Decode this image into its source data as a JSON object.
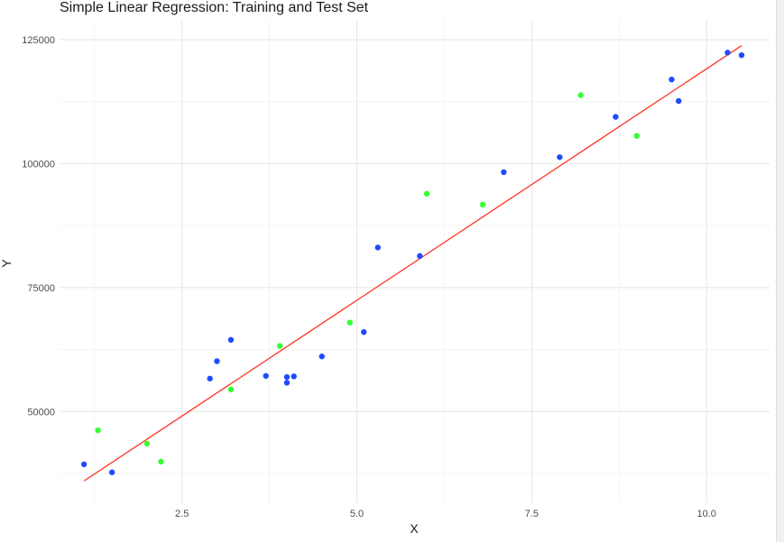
{
  "chart_data": {
    "type": "scatter",
    "title": "Simple Linear Regression: Training and Test Set",
    "xlabel": "X",
    "ylabel": "Y",
    "xlim": [
      0.75,
      10.9
    ],
    "ylim": [
      31500,
      129000
    ],
    "x_ticks": [
      2.5,
      5.0,
      7.5,
      10.0
    ],
    "x_tick_labels": [
      "2.5",
      "5.0",
      "7.5",
      "10.0"
    ],
    "y_ticks": [
      50000,
      75000,
      100000,
      125000
    ],
    "y_tick_labels": [
      "50000",
      "75000",
      "100000",
      "125000"
    ],
    "grid": true,
    "legend": "none",
    "series": [
      {
        "kind": "points",
        "color": "#1f4bff",
        "points": [
          {
            "x": 1.1,
            "y": 39343
          },
          {
            "x": 1.5,
            "y": 37731
          },
          {
            "x": 2.9,
            "y": 56642
          },
          {
            "x": 3.0,
            "y": 60150
          },
          {
            "x": 3.2,
            "y": 64445
          },
          {
            "x": 3.7,
            "y": 57189
          },
          {
            "x": 4.0,
            "y": 56957
          },
          {
            "x": 4.0,
            "y": 55794
          },
          {
            "x": 4.1,
            "y": 57081
          },
          {
            "x": 4.5,
            "y": 61111
          },
          {
            "x": 5.1,
            "y": 66029
          },
          {
            "x": 5.3,
            "y": 83088
          },
          {
            "x": 5.9,
            "y": 81363
          },
          {
            "x": 7.1,
            "y": 98273
          },
          {
            "x": 7.9,
            "y": 101302
          },
          {
            "x": 8.7,
            "y": 109431
          },
          {
            "x": 9.5,
            "y": 116969
          },
          {
            "x": 9.6,
            "y": 112635
          },
          {
            "x": 10.3,
            "y": 122391
          },
          {
            "x": 10.5,
            "y": 121872
          }
        ]
      },
      {
        "kind": "points",
        "color": "#33ff33",
        "points": [
          {
            "x": 1.3,
            "y": 46205
          },
          {
            "x": 2.0,
            "y": 43525
          },
          {
            "x": 2.2,
            "y": 39891
          },
          {
            "x": 3.2,
            "y": 54445
          },
          {
            "x": 3.9,
            "y": 63218
          },
          {
            "x": 4.9,
            "y": 67938
          },
          {
            "x": 6.0,
            "y": 93940
          },
          {
            "x": 6.8,
            "y": 91738
          },
          {
            "x": 8.2,
            "y": 113812
          },
          {
            "x": 9.0,
            "y": 105582
          }
        ]
      },
      {
        "kind": "line",
        "color": "#ff3322",
        "points": [
          {
            "x": 1.1,
            "y": 36000
          },
          {
            "x": 10.5,
            "y": 123800
          }
        ]
      }
    ]
  }
}
